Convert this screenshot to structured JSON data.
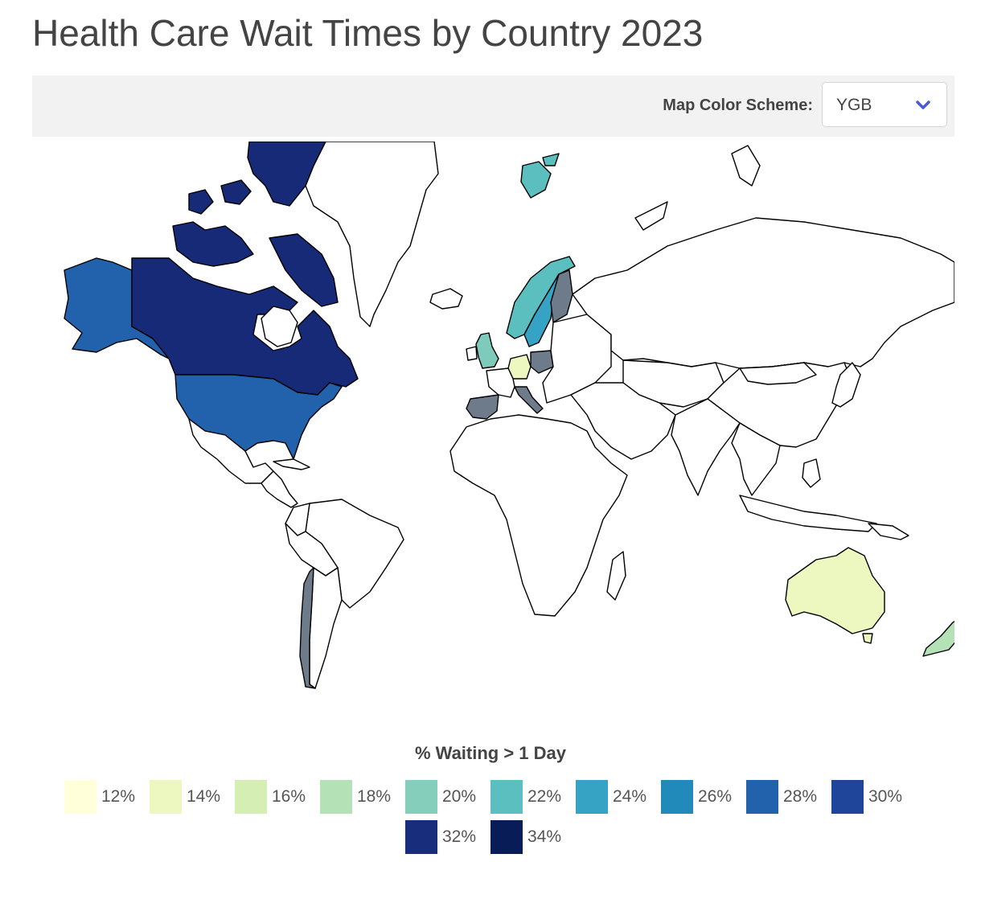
{
  "title": "Health Care Wait Times by Country 2023",
  "toolbar": {
    "scheme_label": "Map Color Scheme:",
    "scheme_value": "YGB",
    "chevron_icon": "chevron-down-icon",
    "chevron_color": "#4a5ad1"
  },
  "map": {
    "projection": "world",
    "no_data_color": "#ffffff",
    "gray_color": "#6e7b8b",
    "countries": [
      {
        "name": "Canada",
        "bucket": "32%",
        "color": "#162a78"
      },
      {
        "name": "United States",
        "bucket": "28%",
        "color": "#2262ac"
      },
      {
        "name": "Alaska (United States)",
        "bucket": "28%",
        "color": "#2262ac"
      },
      {
        "name": "Greenland-adjacent Arctic islands (Canada)",
        "bucket": "32%",
        "color": "#162a78"
      },
      {
        "name": "Norway",
        "bucket": "22%",
        "color": "#5bbfc0"
      },
      {
        "name": "Svalbard (Norway)",
        "bucket": "22%",
        "color": "#5bbfc0"
      },
      {
        "name": "Sweden",
        "bucket": "24%",
        "color": "#36a3c4"
      },
      {
        "name": "United Kingdom",
        "bucket": "20%",
        "color": "#7fcbbb"
      },
      {
        "name": "Germany",
        "bucket": "14%",
        "color": "#edf8c0"
      },
      {
        "name": "Australia",
        "bucket": "14%",
        "color": "#edf8c0"
      },
      {
        "name": "New Zealand",
        "bucket": "18%",
        "color": "#b5e1b7"
      },
      {
        "name": "Finland",
        "bucket": "",
        "color": "#6e7b8b"
      },
      {
        "name": "Poland",
        "bucket": "",
        "color": "#6e7b8b"
      },
      {
        "name": "Spain",
        "bucket": "",
        "color": "#6e7b8b"
      },
      {
        "name": "Italy",
        "bucket": "",
        "color": "#6e7b8b"
      },
      {
        "name": "Chile",
        "bucket": "",
        "color": "#6e7b8b"
      }
    ]
  },
  "legend": {
    "title": "% Waiting > 1 Day",
    "items": [
      {
        "label": "12%",
        "color": "#ffffd9"
      },
      {
        "label": "14%",
        "color": "#edf8c0"
      },
      {
        "label": "16%",
        "color": "#d5eeb3"
      },
      {
        "label": "18%",
        "color": "#b5e1b7"
      },
      {
        "label": "20%",
        "color": "#86cebc"
      },
      {
        "label": "22%",
        "color": "#5bbfc0"
      },
      {
        "label": "24%",
        "color": "#36a3c4"
      },
      {
        "label": "26%",
        "color": "#2289bb"
      },
      {
        "label": "28%",
        "color": "#2262ac"
      },
      {
        "label": "30%",
        "color": "#1f459b"
      },
      {
        "label": "32%",
        "color": "#182e7c"
      },
      {
        "label": "34%",
        "color": "#081d58"
      }
    ]
  }
}
